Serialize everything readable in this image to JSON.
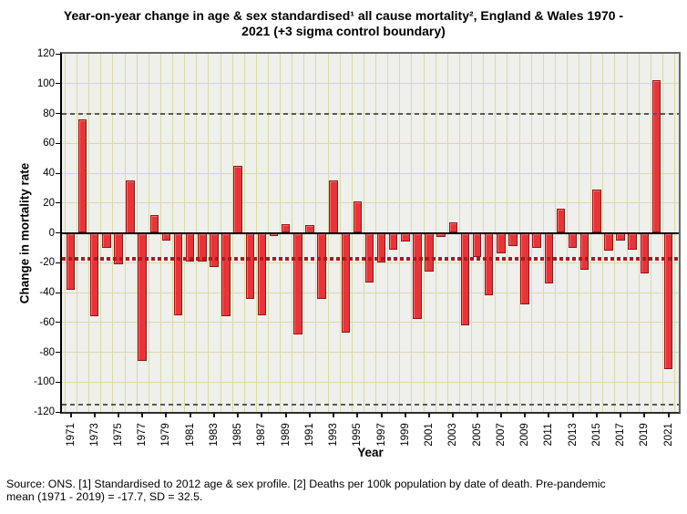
{
  "title": {
    "line1": "Year-on-year change in age & sex standardised¹ all cause mortality², England & Wales 1970 -",
    "line2": "2021 (+3 sigma control boundary)"
  },
  "y_axis": {
    "label": "Change in mortality rate",
    "ticks": [
      120,
      100,
      80,
      60,
      40,
      20,
      0,
      -20,
      -40,
      -60,
      -80,
      -100,
      -120
    ]
  },
  "x_axis": {
    "label": "Year",
    "tick_years": [
      1971,
      1973,
      1975,
      1977,
      1979,
      1981,
      1983,
      1985,
      1987,
      1989,
      1991,
      1993,
      1995,
      1997,
      1999,
      2001,
      2003,
      2005,
      2007,
      2009,
      2011,
      2013,
      2015,
      2017,
      2019,
      2021
    ]
  },
  "footer": {
    "line1": "Source: ONS. [1] Standardised to 2012 age & sex profile. [2] Deaths per 100k population by date of death. Pre-pandemic",
    "line2": "mean (1971 - 2019) = -17.7, SD = 32.5."
  },
  "colors": {
    "bar_fill": "#e53538",
    "bar_border": "#8e1619",
    "plot_background": "#efefec",
    "gridline": "#d9d9ab",
    "mean_line": "#ad191e",
    "sigma_line": "#58585a",
    "zero_line": "#000000"
  },
  "chart_data": {
    "type": "bar",
    "title": "Year-on-year change in age & sex standardised all cause mortality, England & Wales 1970 - 2021 (+3 sigma control boundary)",
    "xlabel": "Year",
    "ylabel": "Change in mortality rate",
    "ylim": [
      -120,
      120
    ],
    "grid": true,
    "years": [
      1971,
      1972,
      1973,
      1974,
      1975,
      1976,
      1977,
      1978,
      1979,
      1980,
      1981,
      1982,
      1983,
      1984,
      1985,
      1986,
      1987,
      1988,
      1989,
      1990,
      1991,
      1992,
      1993,
      1994,
      1995,
      1996,
      1997,
      1998,
      1999,
      2000,
      2001,
      2002,
      2003,
      2004,
      2005,
      2006,
      2007,
      2008,
      2009,
      2010,
      2011,
      2012,
      2013,
      2014,
      2015,
      2016,
      2017,
      2018,
      2019,
      2020,
      2021
    ],
    "values": [
      -38,
      76,
      -56,
      -10,
      -21,
      35,
      -86,
      12,
      -5,
      -55,
      -19,
      -19,
      -23,
      -56,
      45,
      -44,
      -55,
      -2,
      6,
      -68,
      5,
      -44,
      35,
      -67,
      21,
      -33,
      -20,
      -11,
      -6,
      -58,
      -26,
      -3,
      7,
      -62,
      -16,
      -42,
      -14,
      -9,
      -48,
      -10,
      -34,
      16,
      -10,
      -25,
      29,
      -12,
      -5,
      -11,
      -27,
      102,
      -91
    ],
    "reference_lines": {
      "mean": -17.7,
      "upper_control": 79.8,
      "lower_control": -115.2,
      "sd": 32.5
    }
  }
}
